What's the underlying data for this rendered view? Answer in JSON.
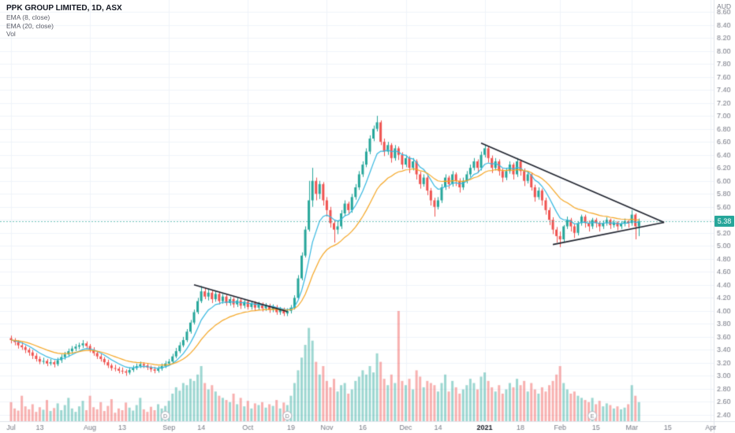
{
  "header": {
    "symbol_title": "PPK GROUP LIMITED, 1D, ASX",
    "indicators": [
      "EMA (8, close)",
      "EMA (20, close)",
      "Vol"
    ]
  },
  "axes": {
    "currency_label": "AUD",
    "price_min": 2.4,
    "price_max": 8.6,
    "price_step": 0.2,
    "time_labels": [
      {
        "index": 0,
        "label": "Jul"
      },
      {
        "index": 8,
        "label": "13"
      },
      {
        "index": 22,
        "label": "Aug"
      },
      {
        "index": 31,
        "label": "13"
      },
      {
        "index": 44,
        "label": "Sep"
      },
      {
        "index": 53,
        "label": "14"
      },
      {
        "index": 66,
        "label": "Oct"
      },
      {
        "index": 78,
        "label": "19"
      },
      {
        "index": 88,
        "label": "Nov"
      },
      {
        "index": 98,
        "label": "16"
      },
      {
        "index": 110,
        "label": "Dec"
      },
      {
        "index": 119,
        "label": "14"
      },
      {
        "index": 132,
        "label": "2021",
        "bold": true
      },
      {
        "index": 142,
        "label": "18"
      },
      {
        "index": 153,
        "label": "Feb"
      },
      {
        "index": 163,
        "label": "15"
      },
      {
        "index": 173,
        "label": "Mar"
      },
      {
        "index": 183,
        "label": "15"
      },
      {
        "index": 195,
        "label": "Apr"
      }
    ]
  },
  "last_price": {
    "value": "5.38",
    "color": "#26a69a"
  },
  "colors": {
    "up": "#26a69a",
    "down": "#ef5350",
    "vol_up": "rgba(38,166,154,0.45)",
    "vol_down": "rgba(239,83,80,0.45)",
    "ema8": "#35b8e0",
    "ema20": "#f5a623",
    "grid": "#f0f3fa",
    "axis_text": "#787b86",
    "axis_border": "#e0e3eb",
    "trendline": "#1e222d"
  },
  "chart_data": {
    "type": "candlestick",
    "title": "PPK GROUP LIMITED, 1D, ASX",
    "timeframe": "1D",
    "currency": "AUD",
    "ylim": [
      2.4,
      8.6
    ],
    "volume_max": 2.6,
    "legend_position": "top-left",
    "grid": true,
    "emas": [
      {
        "period": 8,
        "color": "#35b8e0"
      },
      {
        "period": 20,
        "color": "#f5a623"
      }
    ],
    "candles": [
      [
        3.58,
        3.62,
        3.5,
        3.55
      ],
      [
        3.55,
        3.58,
        3.47,
        3.52
      ],
      [
        3.52,
        3.55,
        3.42,
        3.47
      ],
      [
        3.47,
        3.52,
        3.4,
        3.44
      ],
      [
        3.44,
        3.47,
        3.35,
        3.4
      ],
      [
        3.4,
        3.43,
        3.31,
        3.36
      ],
      [
        3.36,
        3.4,
        3.26,
        3.31
      ],
      [
        3.31,
        3.35,
        3.22,
        3.26
      ],
      [
        3.26,
        3.3,
        3.18,
        3.22
      ],
      [
        3.22,
        3.28,
        3.18,
        3.23
      ],
      [
        3.23,
        3.26,
        3.15,
        3.19
      ],
      [
        3.19,
        3.26,
        3.16,
        3.21
      ],
      [
        3.21,
        3.24,
        3.13,
        3.18
      ],
      [
        3.18,
        3.28,
        3.15,
        3.24
      ],
      [
        3.24,
        3.33,
        3.2,
        3.29
      ],
      [
        3.29,
        3.37,
        3.25,
        3.33
      ],
      [
        3.33,
        3.42,
        3.29,
        3.38
      ],
      [
        3.38,
        3.46,
        3.34,
        3.42
      ],
      [
        3.42,
        3.49,
        3.38,
        3.45
      ],
      [
        3.45,
        3.51,
        3.41,
        3.47
      ],
      [
        3.47,
        3.55,
        3.43,
        3.5
      ],
      [
        3.5,
        3.53,
        3.42,
        3.46
      ],
      [
        3.46,
        3.49,
        3.36,
        3.4
      ],
      [
        3.4,
        3.44,
        3.31,
        3.35
      ],
      [
        3.35,
        3.38,
        3.26,
        3.3
      ],
      [
        3.3,
        3.34,
        3.22,
        3.26
      ],
      [
        3.26,
        3.29,
        3.17,
        3.21
      ],
      [
        3.21,
        3.25,
        3.12,
        3.16
      ],
      [
        3.16,
        3.19,
        3.08,
        3.12
      ],
      [
        3.12,
        3.17,
        3.07,
        3.11
      ],
      [
        3.11,
        3.14,
        3.04,
        3.08
      ],
      [
        3.08,
        3.13,
        3.03,
        3.07
      ],
      [
        3.07,
        3.1,
        3.0,
        3.05
      ],
      [
        3.05,
        3.13,
        3.02,
        3.09
      ],
      [
        3.09,
        3.16,
        3.06,
        3.12
      ],
      [
        3.12,
        3.19,
        3.09,
        3.15
      ],
      [
        3.15,
        3.22,
        3.12,
        3.18
      ],
      [
        3.18,
        3.21,
        3.12,
        3.16
      ],
      [
        3.16,
        3.19,
        3.09,
        3.13
      ],
      [
        3.13,
        3.16,
        3.06,
        3.1
      ],
      [
        3.1,
        3.14,
        3.04,
        3.08
      ],
      [
        3.08,
        3.15,
        3.05,
        3.11
      ],
      [
        3.11,
        3.19,
        3.08,
        3.15
      ],
      [
        3.15,
        3.23,
        3.12,
        3.19
      ],
      [
        3.19,
        3.26,
        3.16,
        3.22
      ],
      [
        3.22,
        3.34,
        3.19,
        3.3
      ],
      [
        3.3,
        3.43,
        3.27,
        3.38
      ],
      [
        3.38,
        3.52,
        3.35,
        3.47
      ],
      [
        3.47,
        3.6,
        3.44,
        3.55
      ],
      [
        3.55,
        3.72,
        3.52,
        3.68
      ],
      [
        3.68,
        3.86,
        3.65,
        3.82
      ],
      [
        3.82,
        4.02,
        3.79,
        3.98
      ],
      [
        3.98,
        4.2,
        3.95,
        4.15
      ],
      [
        4.15,
        4.38,
        4.12,
        4.3
      ],
      [
        4.3,
        4.35,
        4.18,
        4.22
      ],
      [
        4.22,
        4.34,
        4.16,
        4.28
      ],
      [
        4.28,
        4.32,
        4.12,
        4.18
      ],
      [
        4.18,
        4.3,
        4.14,
        4.26
      ],
      [
        4.26,
        4.29,
        4.1,
        4.15
      ],
      [
        4.15,
        4.26,
        4.11,
        4.22
      ],
      [
        4.22,
        4.25,
        4.08,
        4.12
      ],
      [
        4.12,
        4.22,
        4.08,
        4.18
      ],
      [
        4.18,
        4.21,
        4.05,
        4.1
      ],
      [
        4.1,
        4.2,
        4.06,
        4.16
      ],
      [
        4.16,
        4.19,
        4.03,
        4.08
      ],
      [
        4.08,
        4.18,
        4.04,
        4.14
      ],
      [
        4.14,
        4.17,
        4.02,
        4.06
      ],
      [
        4.06,
        4.15,
        4.02,
        4.12
      ],
      [
        4.12,
        4.15,
        4.0,
        4.05
      ],
      [
        4.05,
        4.14,
        4.01,
        4.1
      ],
      [
        4.1,
        4.13,
        3.99,
        4.04
      ],
      [
        4.04,
        4.12,
        4.0,
        4.08
      ],
      [
        4.08,
        4.11,
        3.97,
        4.02
      ],
      [
        4.02,
        4.1,
        3.98,
        4.06
      ],
      [
        4.06,
        4.09,
        3.94,
        3.98
      ],
      [
        3.98,
        4.06,
        3.94,
        4.02
      ],
      [
        4.02,
        4.05,
        3.92,
        3.96
      ],
      [
        3.96,
        4.04,
        3.92,
        4.0
      ],
      [
        4.0,
        4.09,
        3.96,
        4.05
      ],
      [
        4.05,
        4.24,
        4.02,
        4.2
      ],
      [
        4.2,
        4.55,
        4.17,
        4.5
      ],
      [
        4.5,
        4.9,
        4.47,
        4.85
      ],
      [
        4.85,
        5.3,
        4.82,
        5.25
      ],
      [
        5.25,
        6.0,
        5.22,
        5.7
      ],
      [
        5.7,
        6.2,
        5.6,
        6.0
      ],
      [
        6.0,
        6.05,
        5.7,
        5.8
      ],
      [
        5.8,
        6.0,
        5.72,
        5.95
      ],
      [
        5.95,
        5.98,
        5.62,
        5.7
      ],
      [
        5.7,
        5.75,
        5.45,
        5.55
      ],
      [
        5.55,
        5.6,
        5.28,
        5.35
      ],
      [
        5.35,
        5.4,
        5.05,
        5.25
      ],
      [
        5.25,
        5.38,
        5.18,
        5.3
      ],
      [
        5.3,
        5.55,
        5.26,
        5.5
      ],
      [
        5.5,
        5.7,
        5.46,
        5.65
      ],
      [
        5.65,
        5.68,
        5.48,
        5.55
      ],
      [
        5.55,
        5.8,
        5.51,
        5.75
      ],
      [
        5.75,
        5.95,
        5.71,
        5.9
      ],
      [
        5.9,
        6.15,
        5.86,
        6.1
      ],
      [
        6.1,
        6.3,
        6.06,
        6.25
      ],
      [
        6.25,
        6.5,
        6.21,
        6.45
      ],
      [
        6.45,
        6.7,
        6.41,
        6.65
      ],
      [
        6.65,
        6.85,
        6.61,
        6.8
      ],
      [
        6.8,
        7.0,
        6.76,
        6.9
      ],
      [
        6.9,
        6.93,
        6.55,
        6.6
      ],
      [
        6.6,
        6.65,
        6.38,
        6.45
      ],
      [
        6.45,
        6.6,
        6.4,
        6.55
      ],
      [
        6.55,
        6.58,
        6.28,
        6.35
      ],
      [
        6.35,
        6.55,
        6.31,
        6.5
      ],
      [
        6.5,
        6.53,
        6.32,
        6.4
      ],
      [
        6.4,
        6.44,
        6.18,
        6.25
      ],
      [
        6.25,
        6.4,
        6.21,
        6.35
      ],
      [
        6.35,
        6.38,
        6.12,
        6.2
      ],
      [
        6.2,
        6.35,
        6.16,
        6.3
      ],
      [
        6.3,
        6.33,
        6.02,
        6.1
      ],
      [
        6.1,
        6.14,
        5.88,
        5.95
      ],
      [
        5.95,
        6.1,
        5.91,
        6.05
      ],
      [
        6.05,
        6.08,
        5.78,
        5.85
      ],
      [
        5.85,
        5.89,
        5.62,
        5.7
      ],
      [
        5.7,
        5.74,
        5.45,
        5.6
      ],
      [
        5.6,
        5.75,
        5.56,
        5.7
      ],
      [
        5.7,
        5.95,
        5.66,
        5.9
      ],
      [
        5.9,
        6.1,
        5.86,
        6.05
      ],
      [
        6.05,
        6.08,
        5.88,
        5.95
      ],
      [
        5.95,
        6.15,
        5.91,
        6.1
      ],
      [
        6.1,
        6.13,
        5.92,
        6.0
      ],
      [
        6.0,
        6.04,
        5.82,
        5.9
      ],
      [
        5.9,
        6.05,
        5.86,
        6.0
      ],
      [
        6.0,
        6.15,
        5.96,
        6.1
      ],
      [
        6.1,
        6.25,
        6.06,
        6.2
      ],
      [
        6.2,
        6.35,
        6.16,
        6.3
      ],
      [
        6.3,
        6.33,
        6.12,
        6.2
      ],
      [
        6.2,
        6.45,
        6.16,
        6.4
      ],
      [
        6.4,
        6.55,
        6.36,
        6.5
      ],
      [
        6.5,
        6.53,
        6.28,
        6.35
      ],
      [
        6.35,
        6.39,
        6.12,
        6.2
      ],
      [
        6.2,
        6.35,
        6.16,
        6.3
      ],
      [
        6.3,
        6.33,
        6.08,
        6.15
      ],
      [
        6.15,
        6.19,
        5.98,
        6.05
      ],
      [
        6.05,
        6.2,
        6.01,
        6.15
      ],
      [
        6.15,
        6.3,
        6.11,
        6.25
      ],
      [
        6.25,
        6.28,
        6.02,
        6.1
      ],
      [
        6.1,
        6.35,
        6.06,
        6.3
      ],
      [
        6.3,
        6.33,
        6.08,
        6.15
      ],
      [
        6.15,
        6.19,
        5.92,
        6.0
      ],
      [
        6.0,
        6.15,
        5.96,
        6.1
      ],
      [
        6.1,
        6.13,
        5.85,
        5.9
      ],
      [
        5.9,
        5.94,
        5.68,
        5.75
      ],
      [
        5.75,
        5.9,
        5.71,
        5.85
      ],
      [
        5.85,
        5.88,
        5.62,
        5.7
      ],
      [
        5.7,
        5.74,
        5.48,
        5.55
      ],
      [
        5.55,
        5.59,
        5.32,
        5.4
      ],
      [
        5.4,
        5.44,
        5.18,
        5.25
      ],
      [
        5.25,
        5.29,
        5.05,
        5.15
      ],
      [
        5.15,
        5.22,
        4.98,
        5.1
      ],
      [
        5.1,
        5.32,
        5.06,
        5.3
      ],
      [
        5.3,
        5.45,
        5.26,
        5.4
      ],
      [
        5.4,
        5.43,
        5.22,
        5.3
      ],
      [
        5.3,
        5.34,
        5.12,
        5.2
      ],
      [
        5.2,
        5.38,
        5.16,
        5.35
      ],
      [
        5.35,
        5.48,
        5.31,
        5.45
      ],
      [
        5.45,
        5.48,
        5.28,
        5.35
      ],
      [
        5.35,
        5.39,
        5.22,
        5.3
      ],
      [
        5.3,
        5.43,
        5.26,
        5.4
      ],
      [
        5.4,
        5.43,
        5.28,
        5.35
      ],
      [
        5.35,
        5.38,
        5.22,
        5.3
      ],
      [
        5.3,
        5.39,
        5.26,
        5.35
      ],
      [
        5.35,
        5.44,
        5.31,
        5.4
      ],
      [
        5.4,
        5.42,
        5.26,
        5.32
      ],
      [
        5.32,
        5.4,
        5.28,
        5.36
      ],
      [
        5.36,
        5.38,
        5.24,
        5.3
      ],
      [
        5.3,
        5.38,
        5.26,
        5.34
      ],
      [
        5.34,
        5.42,
        5.3,
        5.38
      ],
      [
        5.38,
        5.4,
        5.28,
        5.35
      ],
      [
        5.35,
        5.55,
        5.31,
        5.48
      ],
      [
        5.48,
        5.5,
        5.1,
        5.3
      ],
      [
        5.3,
        5.42,
        5.15,
        5.38
      ]
    ],
    "volume": [
      0.45,
      0.3,
      0.25,
      0.6,
      0.35,
      0.28,
      0.4,
      0.22,
      0.33,
      0.27,
      0.5,
      0.24,
      0.31,
      0.42,
      0.26,
      0.38,
      0.55,
      0.3,
      0.22,
      0.35,
      0.48,
      0.26,
      0.6,
      0.33,
      0.28,
      0.45,
      0.24,
      0.36,
      0.52,
      0.2,
      0.3,
      0.26,
      0.44,
      0.32,
      0.25,
      0.38,
      0.55,
      0.28,
      0.22,
      0.34,
      0.26,
      0.4,
      0.3,
      0.36,
      0.48,
      0.65,
      0.8,
      0.72,
      0.9,
      0.85,
      1.0,
      0.95,
      1.1,
      1.3,
      0.9,
      0.75,
      0.85,
      0.7,
      0.6,
      0.55,
      0.5,
      0.45,
      0.65,
      0.4,
      0.55,
      0.35,
      0.48,
      0.3,
      0.42,
      0.38,
      0.45,
      0.32,
      0.4,
      0.36,
      0.5,
      0.3,
      0.44,
      0.38,
      0.6,
      0.9,
      1.2,
      1.5,
      1.8,
      2.2,
      1.9,
      1.4,
      1.1,
      1.3,
      0.95,
      0.8,
      1.0,
      0.7,
      0.85,
      0.9,
      0.65,
      0.75,
      0.95,
      1.05,
      1.2,
      1.1,
      1.3,
      1.15,
      1.6,
      1.4,
      1.0,
      0.85,
      1.1,
      0.9,
      2.6,
      0.95,
      0.85,
      1.0,
      0.75,
      1.2,
      1.05,
      0.8,
      0.95,
      0.9,
      0.85,
      0.7,
      0.9,
      1.1,
      0.7,
      0.95,
      0.8,
      0.65,
      0.75,
      0.85,
      1.0,
      0.9,
      0.75,
      1.05,
      1.15,
      0.95,
      0.8,
      0.7,
      0.85,
      0.65,
      0.75,
      0.9,
      0.8,
      1.0,
      0.85,
      0.95,
      0.7,
      0.9,
      0.75,
      0.65,
      0.8,
      0.7,
      0.85,
      0.95,
      1.1,
      1.3,
      0.9,
      0.75,
      0.65,
      0.7,
      0.6,
      0.55,
      0.5,
      0.45,
      0.55,
      0.4,
      0.48,
      0.35,
      0.42,
      0.38,
      0.3,
      0.35,
      0.28,
      0.32,
      0.4,
      0.85,
      0.6,
      0.45
    ],
    "trendlines": [
      {
        "from": {
          "index": 51,
          "price": 4.4
        },
        "to": {
          "index": 77,
          "price": 3.99
        }
      },
      {
        "from": {
          "index": 131,
          "price": 6.58
        },
        "to": {
          "index": 182,
          "price": 5.36
        }
      },
      {
        "from": {
          "index": 151,
          "price": 5.02
        },
        "to": {
          "index": 182,
          "price": 5.36
        }
      }
    ],
    "markers": [
      {
        "index": 43,
        "label": "D"
      },
      {
        "index": 77,
        "label": "D"
      },
      {
        "index": 162,
        "label": "E"
      }
    ],
    "last_price": 5.38
  }
}
